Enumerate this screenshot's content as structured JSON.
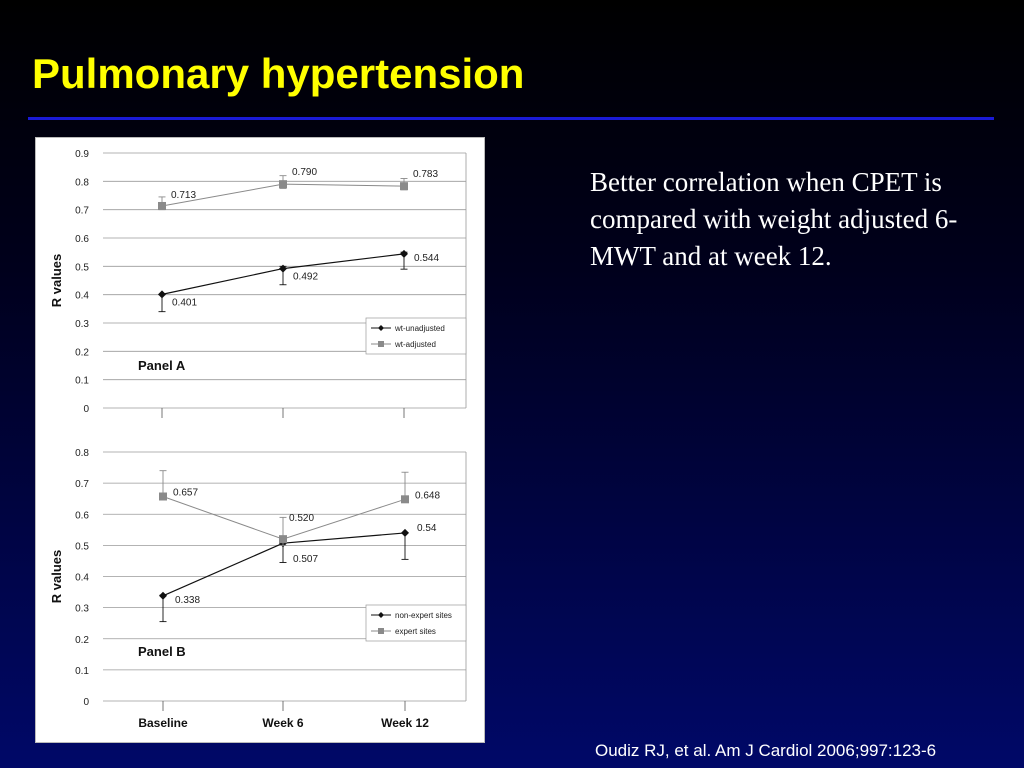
{
  "slide": {
    "title": "Pulmonary hypertension",
    "body": "Better correlation when CPET is compared with weight adjusted 6-MWT and at week 12.",
    "citation": "Oudiz RJ, et al. Am J Cardiol 2006;997:123-6"
  },
  "colors": {
    "title": "#ffff00",
    "rule": "#1a1ad8",
    "text": "#ffffff",
    "series_dark": "#111111",
    "series_grey": "#8a8a8a"
  },
  "chart_data": [
    {
      "type": "line",
      "panel_label": "Panel A",
      "categories": [
        "",
        "",
        ""
      ],
      "ylabel": "R values",
      "ylim": [
        0,
        0.9
      ],
      "yticks": [
        0,
        0.1,
        0.2,
        0.3,
        0.4,
        0.5,
        0.6,
        0.7,
        0.8,
        0.9
      ],
      "ytick_labels": [
        "0",
        "0.1",
        "0.2",
        "0.3",
        "0.4",
        "0.5",
        "0.6",
        "0.7",
        "0.8",
        "0.9"
      ],
      "grid": true,
      "legend_position": "right-middle",
      "series": [
        {
          "name": "wt-unadjusted",
          "marker": "diamond",
          "color": "#111111",
          "values": [
            0.401,
            0.492,
            0.544
          ],
          "labels": [
            "0.401",
            "0.492",
            "0.544"
          ],
          "error_low": [
            0.34,
            0.435,
            0.49
          ],
          "error_high": [
            0.4,
            0.5,
            0.55
          ]
        },
        {
          "name": "wt-adjusted",
          "marker": "square",
          "color": "#8a8a8a",
          "values": [
            0.713,
            0.79,
            0.783
          ],
          "labels": [
            "0.713",
            "0.790",
            "0.783"
          ],
          "error_low": [
            0.7,
            0.775,
            0.77
          ],
          "error_high": [
            0.745,
            0.82,
            0.81
          ]
        }
      ]
    },
    {
      "type": "line",
      "panel_label": "Panel B",
      "categories": [
        "Baseline",
        "Week 6",
        "Week 12"
      ],
      "ylabel": "R values",
      "ylim": [
        0,
        0.8
      ],
      "yticks": [
        0,
        0.1,
        0.2,
        0.3,
        0.4,
        0.5,
        0.6,
        0.7,
        0.8
      ],
      "ytick_labels": [
        "0",
        "0.1",
        "0.2",
        "0.3",
        "0.4",
        "0.5",
        "0.6",
        "0.7",
        "0.8"
      ],
      "grid": true,
      "legend_position": "right-lower",
      "series": [
        {
          "name": "non-expert sites",
          "marker": "diamond",
          "color": "#111111",
          "values": [
            0.338,
            0.507,
            0.54
          ],
          "labels": [
            "0.338",
            "0.507",
            "0.54"
          ],
          "error_low": [
            0.255,
            0.445,
            0.455
          ],
          "error_high": [
            0.34,
            0.51,
            0.54
          ]
        },
        {
          "name": "expert sites",
          "marker": "square",
          "color": "#8a8a8a",
          "values": [
            0.657,
            0.52,
            0.648
          ],
          "labels": [
            "0.657",
            "0.520",
            "0.648"
          ],
          "error_low": [
            0.655,
            0.5,
            0.645
          ],
          "error_high": [
            0.74,
            0.59,
            0.735
          ]
        }
      ]
    }
  ]
}
